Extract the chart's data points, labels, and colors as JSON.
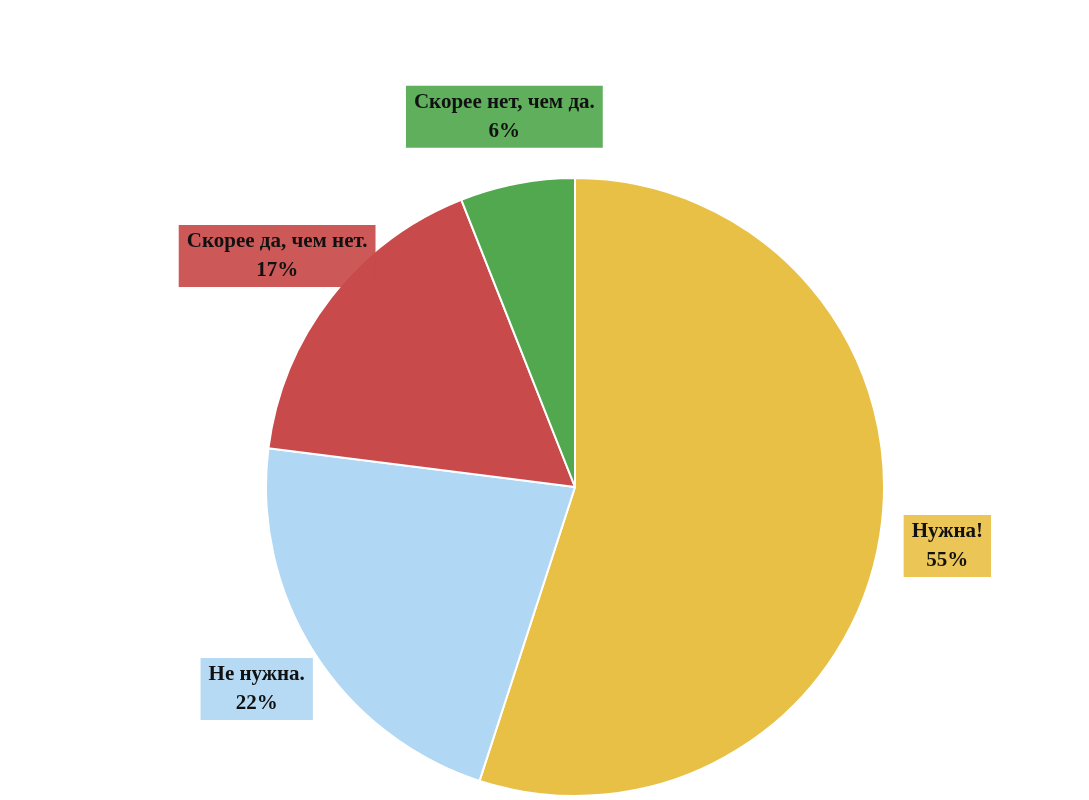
{
  "chart_data": {
    "type": "pie",
    "categories": [
      "Нужна!",
      "Не нужна.",
      "Скорее да, чем нет.",
      "Скорее нет, чем да."
    ],
    "values": [
      55,
      22,
      17,
      6
    ],
    "value_labels": [
      "55%",
      "22%",
      "17%",
      "6%"
    ],
    "colors": [
      "#e9c046",
      "#b0d7f3",
      "#c94a4a",
      "#52a84f"
    ],
    "legend": false
  }
}
